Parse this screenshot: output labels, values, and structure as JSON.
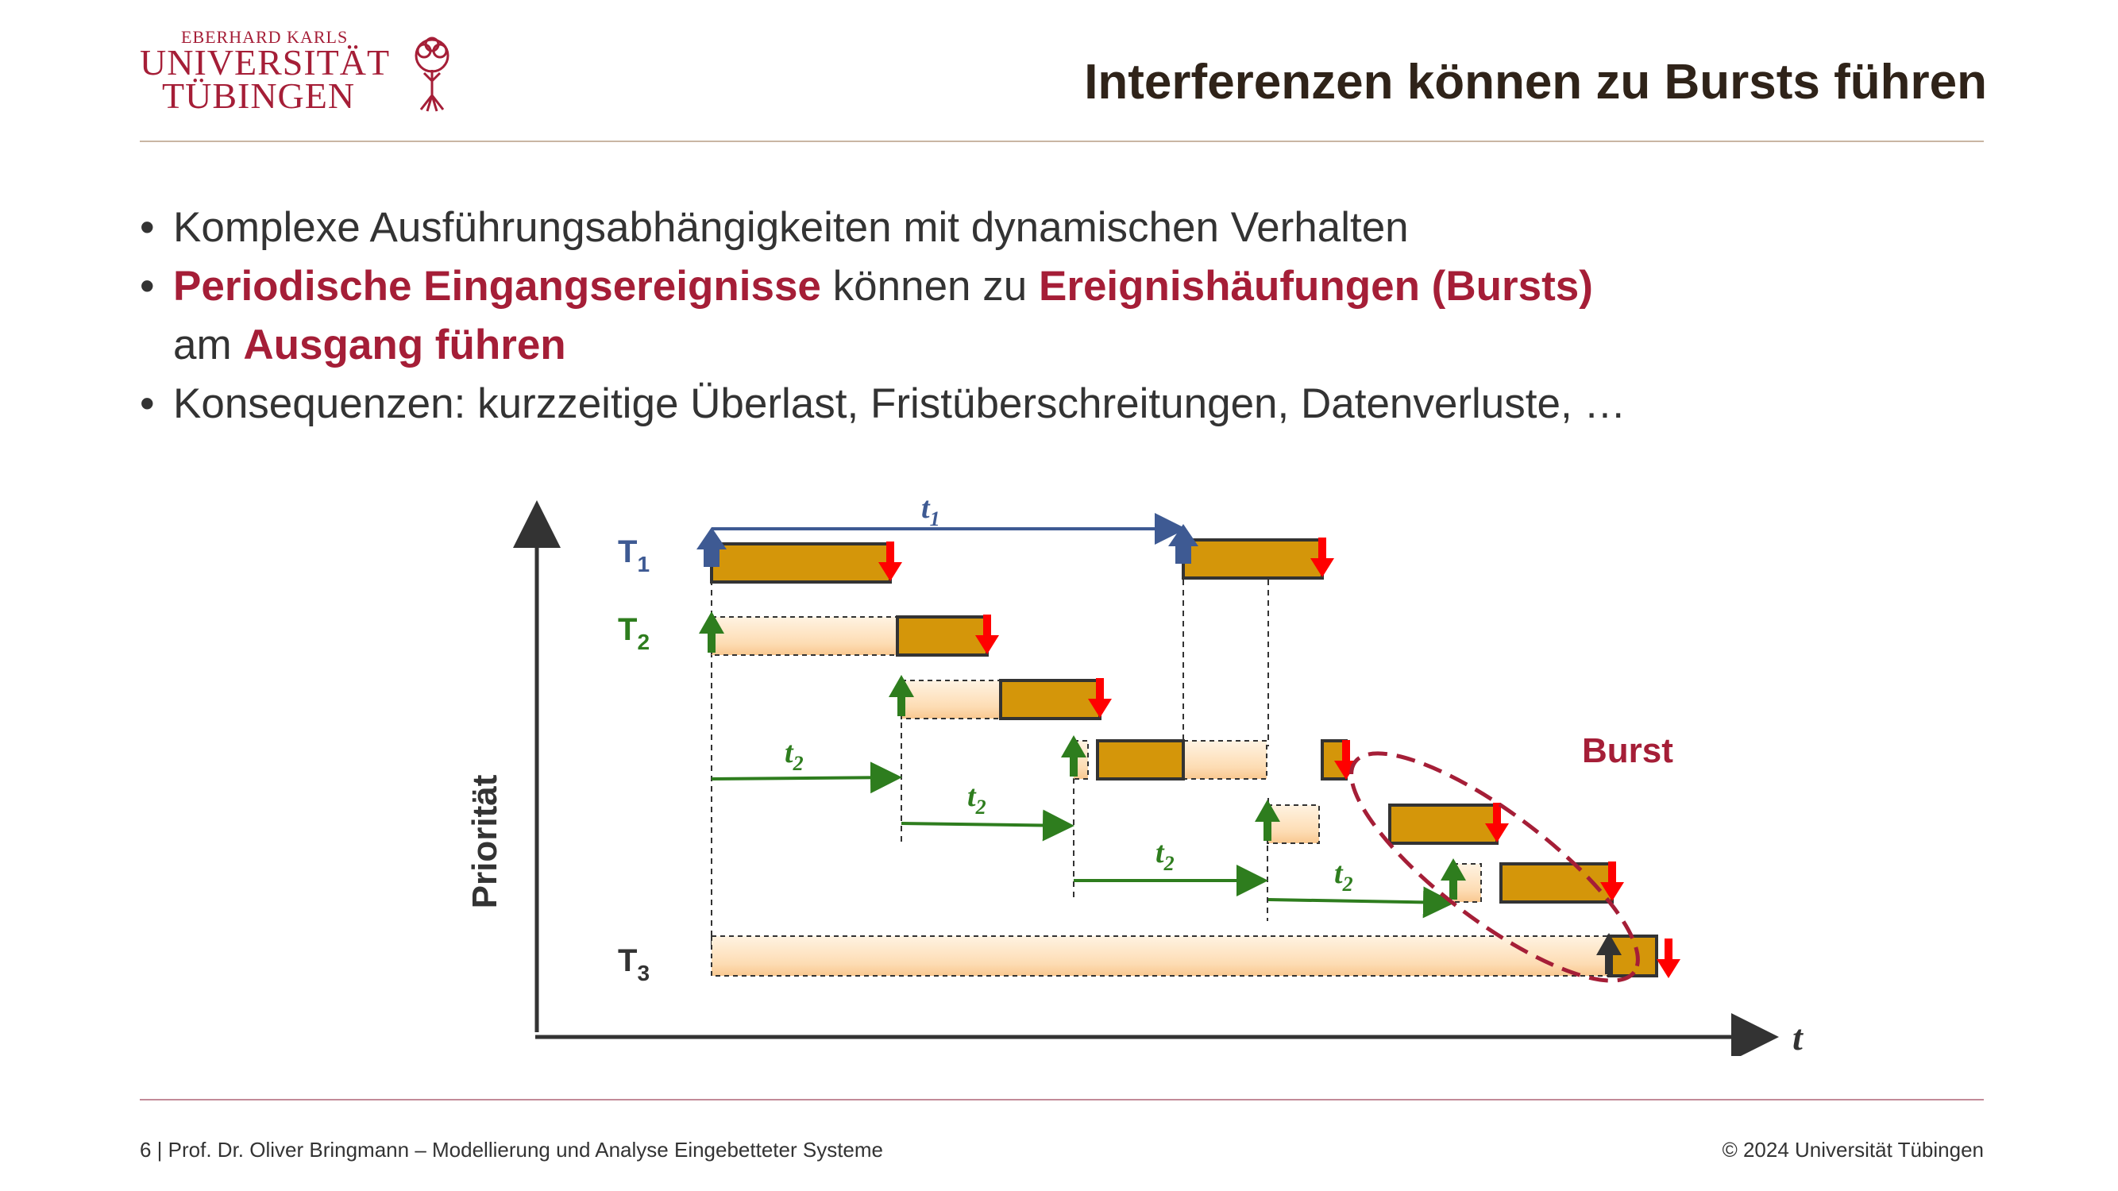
{
  "header": {
    "logo": {
      "line1": "EBERHARD KARLS",
      "line2": "UNIVERSITÄT",
      "line3": "TÜBINGEN"
    },
    "title": "Interferenzen können zu Bursts führen"
  },
  "bullets": {
    "b1": "Komplexe Ausführungsabhängigkeiten mit dynamischen Verhalten",
    "b2_part1": "Periodische Eingangsereignisse",
    "b2_part2": " können zu ",
    "b2_part3": "Ereignishäufungen (Bursts)",
    "b2_part4": "am ",
    "b2_part5": "Ausgang führen",
    "b3": "Konsequenzen: kurzzeitige Überlast, Fristüberschreitungen, Datenverluste, …"
  },
  "diagram": {
    "y_axis_label": "Priorität",
    "x_axis_label": "t",
    "tasks": {
      "t1": "T",
      "t1_sub": "1",
      "t2": "T",
      "t2_sub": "2",
      "t3": "T",
      "t3_sub": "3"
    },
    "period_t1": {
      "base": "t",
      "sub": "1"
    },
    "period_t2": {
      "base": "t",
      "sub": "2"
    },
    "burst_label": "Burst",
    "colors": {
      "exec": "#d4960a",
      "wait": "#fde3c0",
      "t1": "#3e5a93",
      "t2": "#2e7d1e",
      "t3": "#333333",
      "deadline": "#ff0000",
      "burst": "#a51e37"
    }
  },
  "footer": {
    "left": "6 | Prof. Dr. Oliver Bringmann – Modellierung und Analyse Eingebetteter Systeme",
    "right": "© 2024 Universität Tübingen"
  }
}
